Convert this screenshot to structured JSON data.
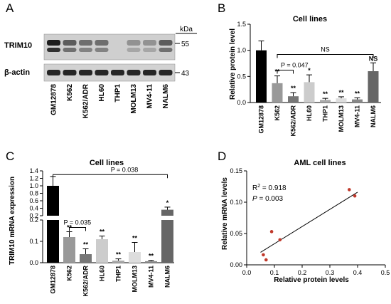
{
  "panel_letters": [
    "A",
    "B",
    "C",
    "D"
  ],
  "blot": {
    "kda_label": "kDa",
    "rows": [
      {
        "label": "TRIM10",
        "marker": "55"
      },
      {
        "label": "β-actin",
        "marker": "43"
      }
    ],
    "lanes": [
      "GM12878",
      "K562",
      "K562/ADR",
      "HL60",
      "THP1",
      "MOLM13",
      "MV4-11",
      "NALM6"
    ],
    "trim10_band_intensity": [
      0.95,
      0.6,
      0.5,
      0.5,
      0.0,
      0.3,
      0.3,
      0.6
    ],
    "actin_band_intensity": [
      0.9,
      0.9,
      0.9,
      0.9,
      0.9,
      0.9,
      0.9,
      0.9
    ]
  },
  "chart_data": [
    {
      "panel": "B",
      "type": "bar",
      "title": "Cell lines",
      "ylabel": "Relative protein level",
      "xlabel": "",
      "ylim": [
        0,
        1.5
      ],
      "yticks": [
        "0.0",
        "0.5",
        "1.0",
        "1.5"
      ],
      "categories": [
        "GM12878",
        "K562",
        "K562/ADR",
        "HL60",
        "THP1",
        "MOLM13",
        "MV4-11",
        "NALM6"
      ],
      "values": [
        1.0,
        0.37,
        0.12,
        0.39,
        0.05,
        0.08,
        0.06,
        0.6
      ],
      "errors": [
        0.18,
        0.14,
        0.07,
        0.14,
        0.03,
        0.03,
        0.03,
        0.16
      ],
      "colors": [
        "#000000",
        "#999999",
        "#777777",
        "#cccccc",
        "#aaaaaa",
        "#dddddd",
        "#888888",
        "#666666"
      ],
      "significance": [
        "",
        "**",
        "**",
        "*",
        "**",
        "**",
        "**",
        "NS"
      ],
      "brackets": [
        {
          "from": 1,
          "to": 2,
          "label": "P = 0.047"
        },
        {
          "from": 1,
          "to": 7,
          "label": "NS"
        }
      ]
    },
    {
      "panel": "C",
      "type": "bar",
      "title": "Cell lines",
      "ylabel": "TRIM10 mRNA expression",
      "xlabel": "",
      "axis_break": true,
      "lower_ylim": [
        0,
        0.2
      ],
      "lower_yticks": [
        "0.0",
        "0.1",
        "0.2"
      ],
      "upper_ylim": [
        0.2,
        1.4
      ],
      "upper_yticks": [
        "0.2",
        "0.4",
        "0.6",
        "0.8",
        "1.0",
        "1.2",
        "1.4"
      ],
      "categories": [
        "GM12878",
        "K562",
        "K562/ADR",
        "HL60",
        "THP1",
        "MOLM13",
        "MV4-11",
        "NALM6"
      ],
      "values": [
        1.0,
        0.12,
        0.04,
        0.11,
        0.01,
        0.05,
        0.007,
        0.36
      ],
      "errors": [
        0.25,
        0.025,
        0.025,
        0.015,
        0.008,
        0.045,
        0.004,
        0.07
      ],
      "colors": [
        "#000000",
        "#999999",
        "#777777",
        "#cccccc",
        "#aaaaaa",
        "#dddddd",
        "#888888",
        "#666666"
      ],
      "significance": [
        "",
        "**",
        "**",
        "**",
        "**",
        "**",
        "**",
        "*"
      ],
      "brackets": [
        {
          "from": 1,
          "to": 2,
          "label": "P = 0.035"
        },
        {
          "from": 0,
          "to": 7,
          "label": "P = 0.038"
        }
      ]
    },
    {
      "panel": "D",
      "type": "scatter",
      "title": "AML cell lines",
      "xlabel": "Relative protein levels",
      "ylabel": "Relative mRNA levels",
      "xlim": [
        0,
        0.5
      ],
      "ylim": [
        0,
        0.15
      ],
      "xticks": [
        "0.0",
        "0.1",
        "0.2",
        "0.3",
        "0.4",
        "0.5"
      ],
      "yticks": [
        "0.00",
        "0.05",
        "0.10",
        "0.15"
      ],
      "points": [
        {
          "x": 0.06,
          "y": 0.016
        },
        {
          "x": 0.07,
          "y": 0.008
        },
        {
          "x": 0.09,
          "y": 0.053
        },
        {
          "x": 0.12,
          "y": 0.04
        },
        {
          "x": 0.37,
          "y": 0.12
        },
        {
          "x": 0.39,
          "y": 0.11
        }
      ],
      "fit_line": {
        "x": [
          0.05,
          0.4
        ],
        "y": [
          0.02,
          0.116
        ]
      },
      "point_color": "#c0392b",
      "stat_r2_prefix": "R",
      "stat_r2_sup": "2",
      "stat_r2_value": " = 0.918",
      "stat_p_prefix": "P",
      "stat_p_value": " = 0.003"
    }
  ]
}
